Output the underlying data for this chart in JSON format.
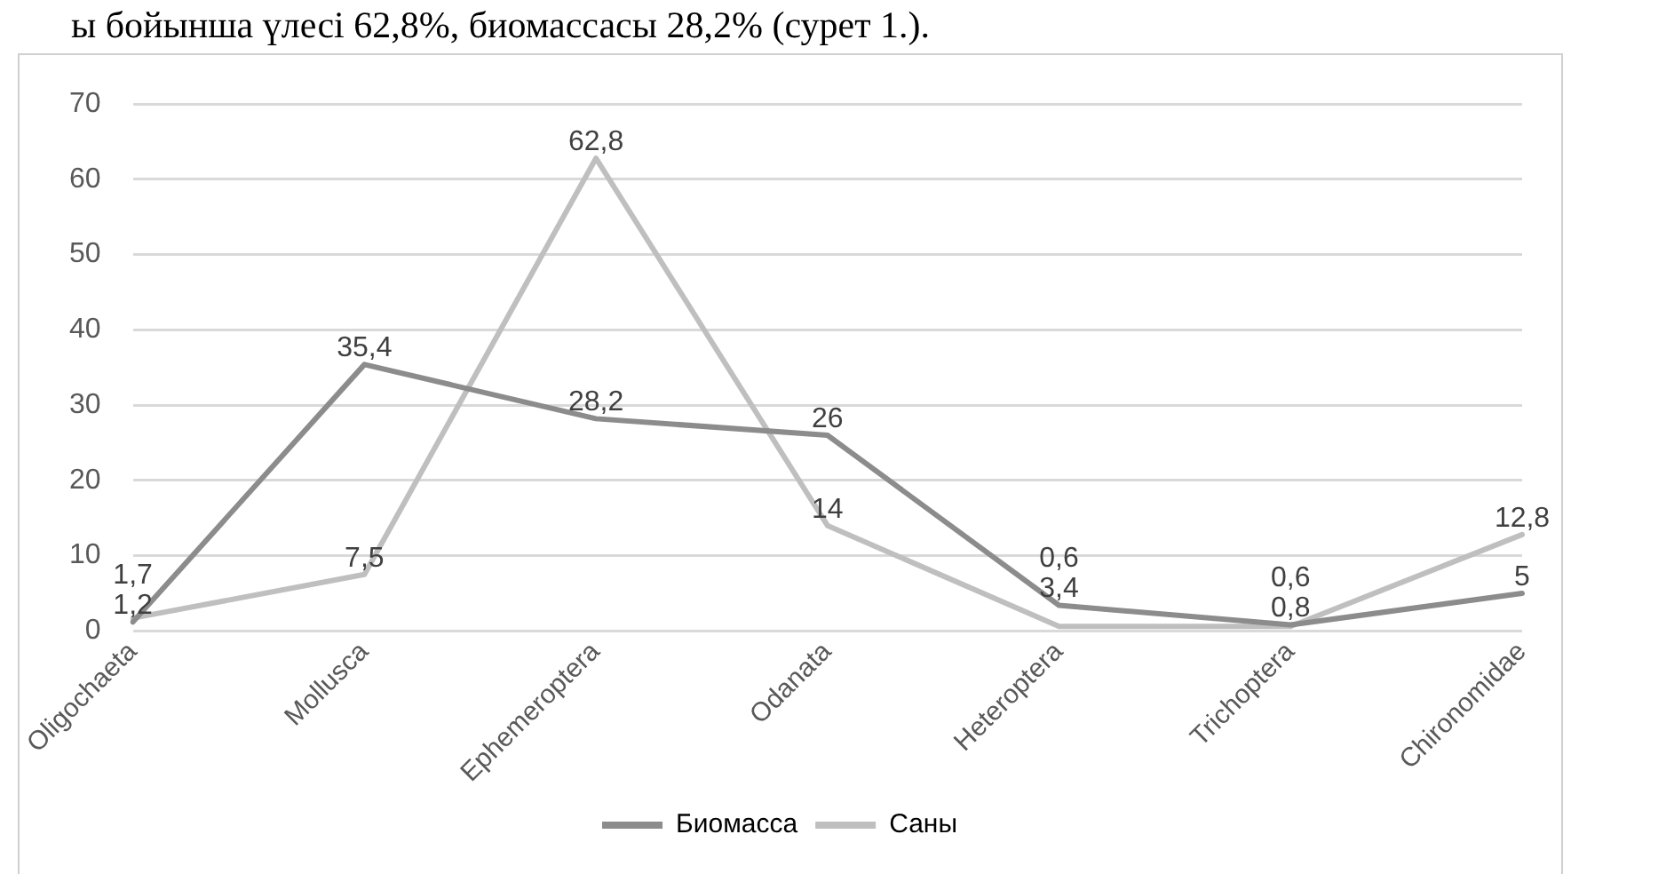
{
  "chart_data": {
    "type": "line",
    "annotations": [
      "ы бойынша үлесі 62,8%, биомассасы 28,2% (сурет 1.)."
    ],
    "categories": [
      "Oligochaeta",
      "Mollusca",
      "Ephemeroptera",
      "Odanata",
      "Heteroptera",
      "Trichoptera",
      "Chironomidae"
    ],
    "series": [
      {
        "name": "Биомасса",
        "color": "#8c8c8c",
        "values": [
          1.2,
          35.4,
          28.2,
          26,
          3.4,
          0.8,
          5
        ],
        "value_labels": [
          "1,2",
          "35,4",
          "28,2",
          "26",
          "3,4",
          "0,8",
          "5"
        ]
      },
      {
        "name": "Саны",
        "color": "#bfbfbf",
        "values": [
          1.7,
          7.5,
          62.8,
          14,
          0.6,
          0.6,
          12.8
        ],
        "value_labels": [
          "1,7",
          "7,5",
          "62,8",
          "14",
          "0,6",
          "0,6",
          "12,8"
        ]
      }
    ],
    "ylim": [
      0,
      70
    ],
    "yticks": [
      0,
      10,
      20,
      30,
      40,
      50,
      60,
      70
    ],
    "grid": "y",
    "legend": "bottom",
    "marker": "none",
    "line_style": "solid"
  }
}
